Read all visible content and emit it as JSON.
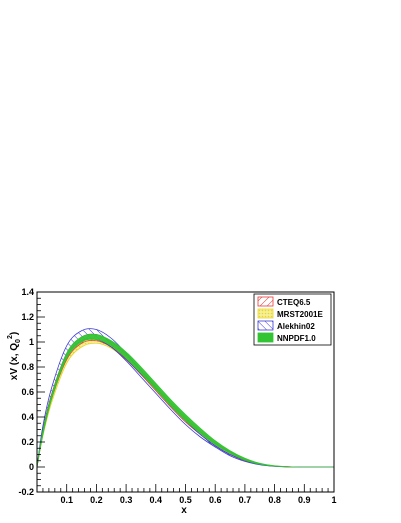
{
  "chart_data": {
    "type": "line",
    "title": "",
    "xlabel": "x",
    "ylabel_main": "xV (x, Q",
    "ylabel_sup": "2",
    "ylabel_sub": "0",
    "ylabel_tail": ")",
    "xlim": [
      0.0,
      1.0
    ],
    "ylim": [
      -0.2,
      1.4
    ],
    "xticks": [
      "0.1",
      "0.2",
      "0.3",
      "0.4",
      "0.5",
      "0.6",
      "0.7",
      "0.8",
      "0.9",
      "1"
    ],
    "xtick_values": [
      0.1,
      0.2,
      0.3,
      0.4,
      0.5,
      0.6,
      0.7,
      0.8,
      0.9,
      1.0
    ],
    "yticks": [
      "-0.2",
      "0",
      "0.2",
      "0.4",
      "0.6",
      "0.8",
      "1",
      "1.2",
      "1.4"
    ],
    "ytick_values": [
      -0.2,
      0,
      0.2,
      0.4,
      0.6,
      0.8,
      1.0,
      1.2,
      1.4
    ],
    "grid": false,
    "legend_position": "top-right",
    "x": [
      0.0,
      0.02,
      0.05,
      0.1,
      0.15,
      0.2,
      0.25,
      0.3,
      0.35,
      0.4,
      0.45,
      0.5,
      0.55,
      0.6,
      0.65,
      0.7,
      0.75,
      0.8,
      0.85,
      0.9,
      0.95,
      1.0
    ],
    "series": [
      {
        "name": "CTEQ6.5",
        "color": "#e8393a",
        "style": "hatch-diagonal",
        "lower": [
          0.0,
          0.27,
          0.55,
          0.86,
          0.99,
          1.01,
          0.96,
          0.86,
          0.74,
          0.61,
          0.48,
          0.36,
          0.26,
          0.17,
          0.1,
          0.05,
          0.02,
          0.006,
          0.001,
          0.0,
          0.0,
          0.0
        ],
        "upper": [
          0.0,
          0.3,
          0.59,
          0.91,
          1.04,
          1.06,
          1.0,
          0.9,
          0.77,
          0.64,
          0.51,
          0.39,
          0.28,
          0.19,
          0.12,
          0.06,
          0.025,
          0.008,
          0.002,
          0.0,
          0.0,
          0.0
        ]
      },
      {
        "name": "MRST2001E",
        "color": "#e8d62a",
        "style": "dots",
        "lower": [
          0.0,
          0.25,
          0.52,
          0.83,
          0.96,
          0.99,
          0.95,
          0.86,
          0.75,
          0.62,
          0.5,
          0.38,
          0.27,
          0.18,
          0.11,
          0.055,
          0.022,
          0.007,
          0.001,
          0.0,
          0.0,
          0.0
        ],
        "upper": [
          0.0,
          0.27,
          0.55,
          0.86,
          0.99,
          1.02,
          0.98,
          0.89,
          0.78,
          0.65,
          0.52,
          0.4,
          0.29,
          0.2,
          0.12,
          0.065,
          0.027,
          0.009,
          0.002,
          0.0,
          0.0,
          0.0
        ]
      },
      {
        "name": "Alekhin02",
        "color": "#3b3bd6",
        "style": "hatch-diagonal-reverse",
        "lower": [
          0.0,
          0.29,
          0.58,
          0.89,
          1.01,
          1.02,
          0.96,
          0.85,
          0.72,
          0.59,
          0.46,
          0.34,
          0.24,
          0.16,
          0.09,
          0.045,
          0.018,
          0.005,
          0.001,
          0.0,
          0.0,
          0.0
        ],
        "upper": [
          0.0,
          0.33,
          0.64,
          0.97,
          1.09,
          1.1,
          1.03,
          0.91,
          0.77,
          0.63,
          0.49,
          0.37,
          0.26,
          0.17,
          0.1,
          0.055,
          0.022,
          0.007,
          0.001,
          0.0,
          0.0,
          0.0
        ]
      },
      {
        "name": "NNPDF1.0",
        "color": "#33c433",
        "style": "solid",
        "lower": [
          0.0,
          0.26,
          0.55,
          0.87,
          1.0,
          1.02,
          0.97,
          0.87,
          0.75,
          0.62,
          0.49,
          0.37,
          0.27,
          0.18,
          0.11,
          0.055,
          0.022,
          0.007,
          0.001,
          0.0,
          0.0,
          0.0
        ],
        "upper": [
          0.0,
          0.29,
          0.58,
          0.91,
          1.04,
          1.06,
          1.01,
          0.92,
          0.8,
          0.67,
          0.54,
          0.42,
          0.31,
          0.21,
          0.13,
          0.07,
          0.03,
          0.01,
          0.002,
          0.0,
          0.0,
          0.0
        ]
      }
    ]
  }
}
